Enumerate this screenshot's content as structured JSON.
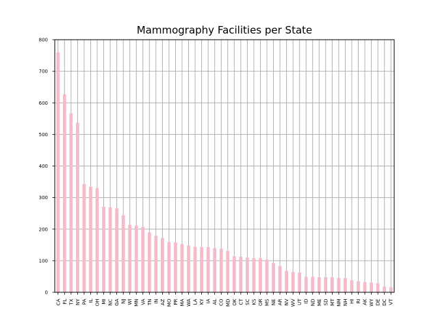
{
  "chart_data": {
    "type": "bar",
    "title": "Mammography Facilities per State",
    "xlabel": "",
    "ylabel": "",
    "ylim": [
      0,
      800
    ],
    "yticks": [
      0,
      100,
      200,
      300,
      400,
      500,
      600,
      700,
      800
    ],
    "grid": true,
    "legend": "none",
    "bar_color": "#f4bccb",
    "grid_color": "#b0b0b0",
    "categories": [
      "CA",
      "FL",
      "TX",
      "NY",
      "PA",
      "IL",
      "OH",
      "MI",
      "NC",
      "GA",
      "NJ",
      "WI",
      "MN",
      "VA",
      "TN",
      "IN",
      "AZ",
      "MO",
      "PR",
      "MA",
      "WA",
      "LA",
      "KY",
      "IA",
      "AL",
      "CO",
      "MD",
      "OK",
      "CT",
      "SC",
      "KS",
      "OR",
      "MS",
      "NE",
      "AR",
      "NV",
      "WV",
      "UT",
      "ID",
      "ND",
      "ME",
      "SD",
      "MT",
      "NM",
      "NH",
      "HI",
      "RI",
      "AK",
      "WY",
      "DE",
      "DC",
      "VT"
    ],
    "values": [
      760,
      627,
      567,
      537,
      343,
      334,
      330,
      271,
      269,
      266,
      244,
      214,
      211,
      207,
      190,
      179,
      172,
      159,
      158,
      153,
      148,
      144,
      143,
      143,
      140,
      138,
      131,
      114,
      113,
      110,
      108,
      108,
      103,
      93,
      83,
      68,
      64,
      63,
      49,
      49,
      48,
      48,
      48,
      46,
      45,
      38,
      35,
      32,
      31,
      29,
      18,
      16
    ]
  }
}
